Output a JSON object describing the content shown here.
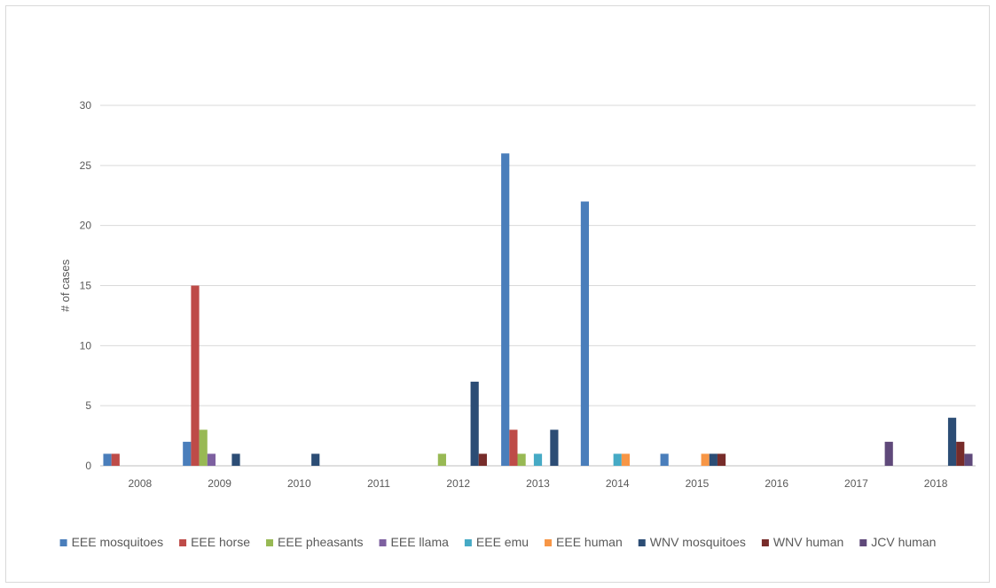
{
  "chart_data": {
    "type": "bar",
    "title": "",
    "xlabel": "",
    "ylabel": "# of cases",
    "ylim": [
      0,
      30
    ],
    "yticks": [
      0,
      5,
      10,
      15,
      20,
      25,
      30
    ],
    "grid": true,
    "legend_position": "bottom",
    "categories": [
      "2008",
      "2009",
      "2010",
      "2011",
      "2012",
      "2013",
      "2014",
      "2015",
      "2016",
      "2017",
      "2018"
    ],
    "series": [
      {
        "name": "EEE mosquitoes",
        "color": "#4a7ebb",
        "values": [
          1,
          2,
          0,
          0,
          0,
          26,
          22,
          1,
          0,
          0,
          0
        ]
      },
      {
        "name": "EEE horse",
        "color": "#be4b48",
        "values": [
          1,
          15,
          0,
          0,
          0,
          3,
          0,
          0,
          0,
          0,
          0
        ]
      },
      {
        "name": "EEE pheasants",
        "color": "#98b954",
        "values": [
          0,
          3,
          0,
          0,
          1,
          1,
          0,
          0,
          0,
          0,
          0
        ]
      },
      {
        "name": "EEE llama",
        "color": "#7d60a0",
        "values": [
          0,
          1,
          0,
          0,
          0,
          0,
          0,
          0,
          0,
          0,
          0
        ]
      },
      {
        "name": "EEE emu",
        "color": "#46aac5",
        "values": [
          0,
          0,
          0,
          0,
          0,
          1,
          1,
          0,
          0,
          0,
          0
        ]
      },
      {
        "name": "EEE human",
        "color": "#f79646",
        "values": [
          0,
          0,
          0,
          0,
          0,
          0,
          1,
          1,
          0,
          0,
          0
        ]
      },
      {
        "name": "WNV mosquitoes",
        "color": "#2c4d75",
        "values": [
          0,
          1,
          1,
          0,
          7,
          3,
          0,
          1,
          0,
          0,
          4
        ]
      },
      {
        "name": "WNV human",
        "color": "#772c2a",
        "values": [
          0,
          0,
          0,
          0,
          1,
          0,
          0,
          1,
          0,
          0,
          2
        ]
      },
      {
        "name": "JCV human",
        "color": "#5f497a",
        "values": [
          0,
          0,
          0,
          0,
          0,
          0,
          0,
          0,
          0,
          2,
          1
        ]
      }
    ]
  }
}
